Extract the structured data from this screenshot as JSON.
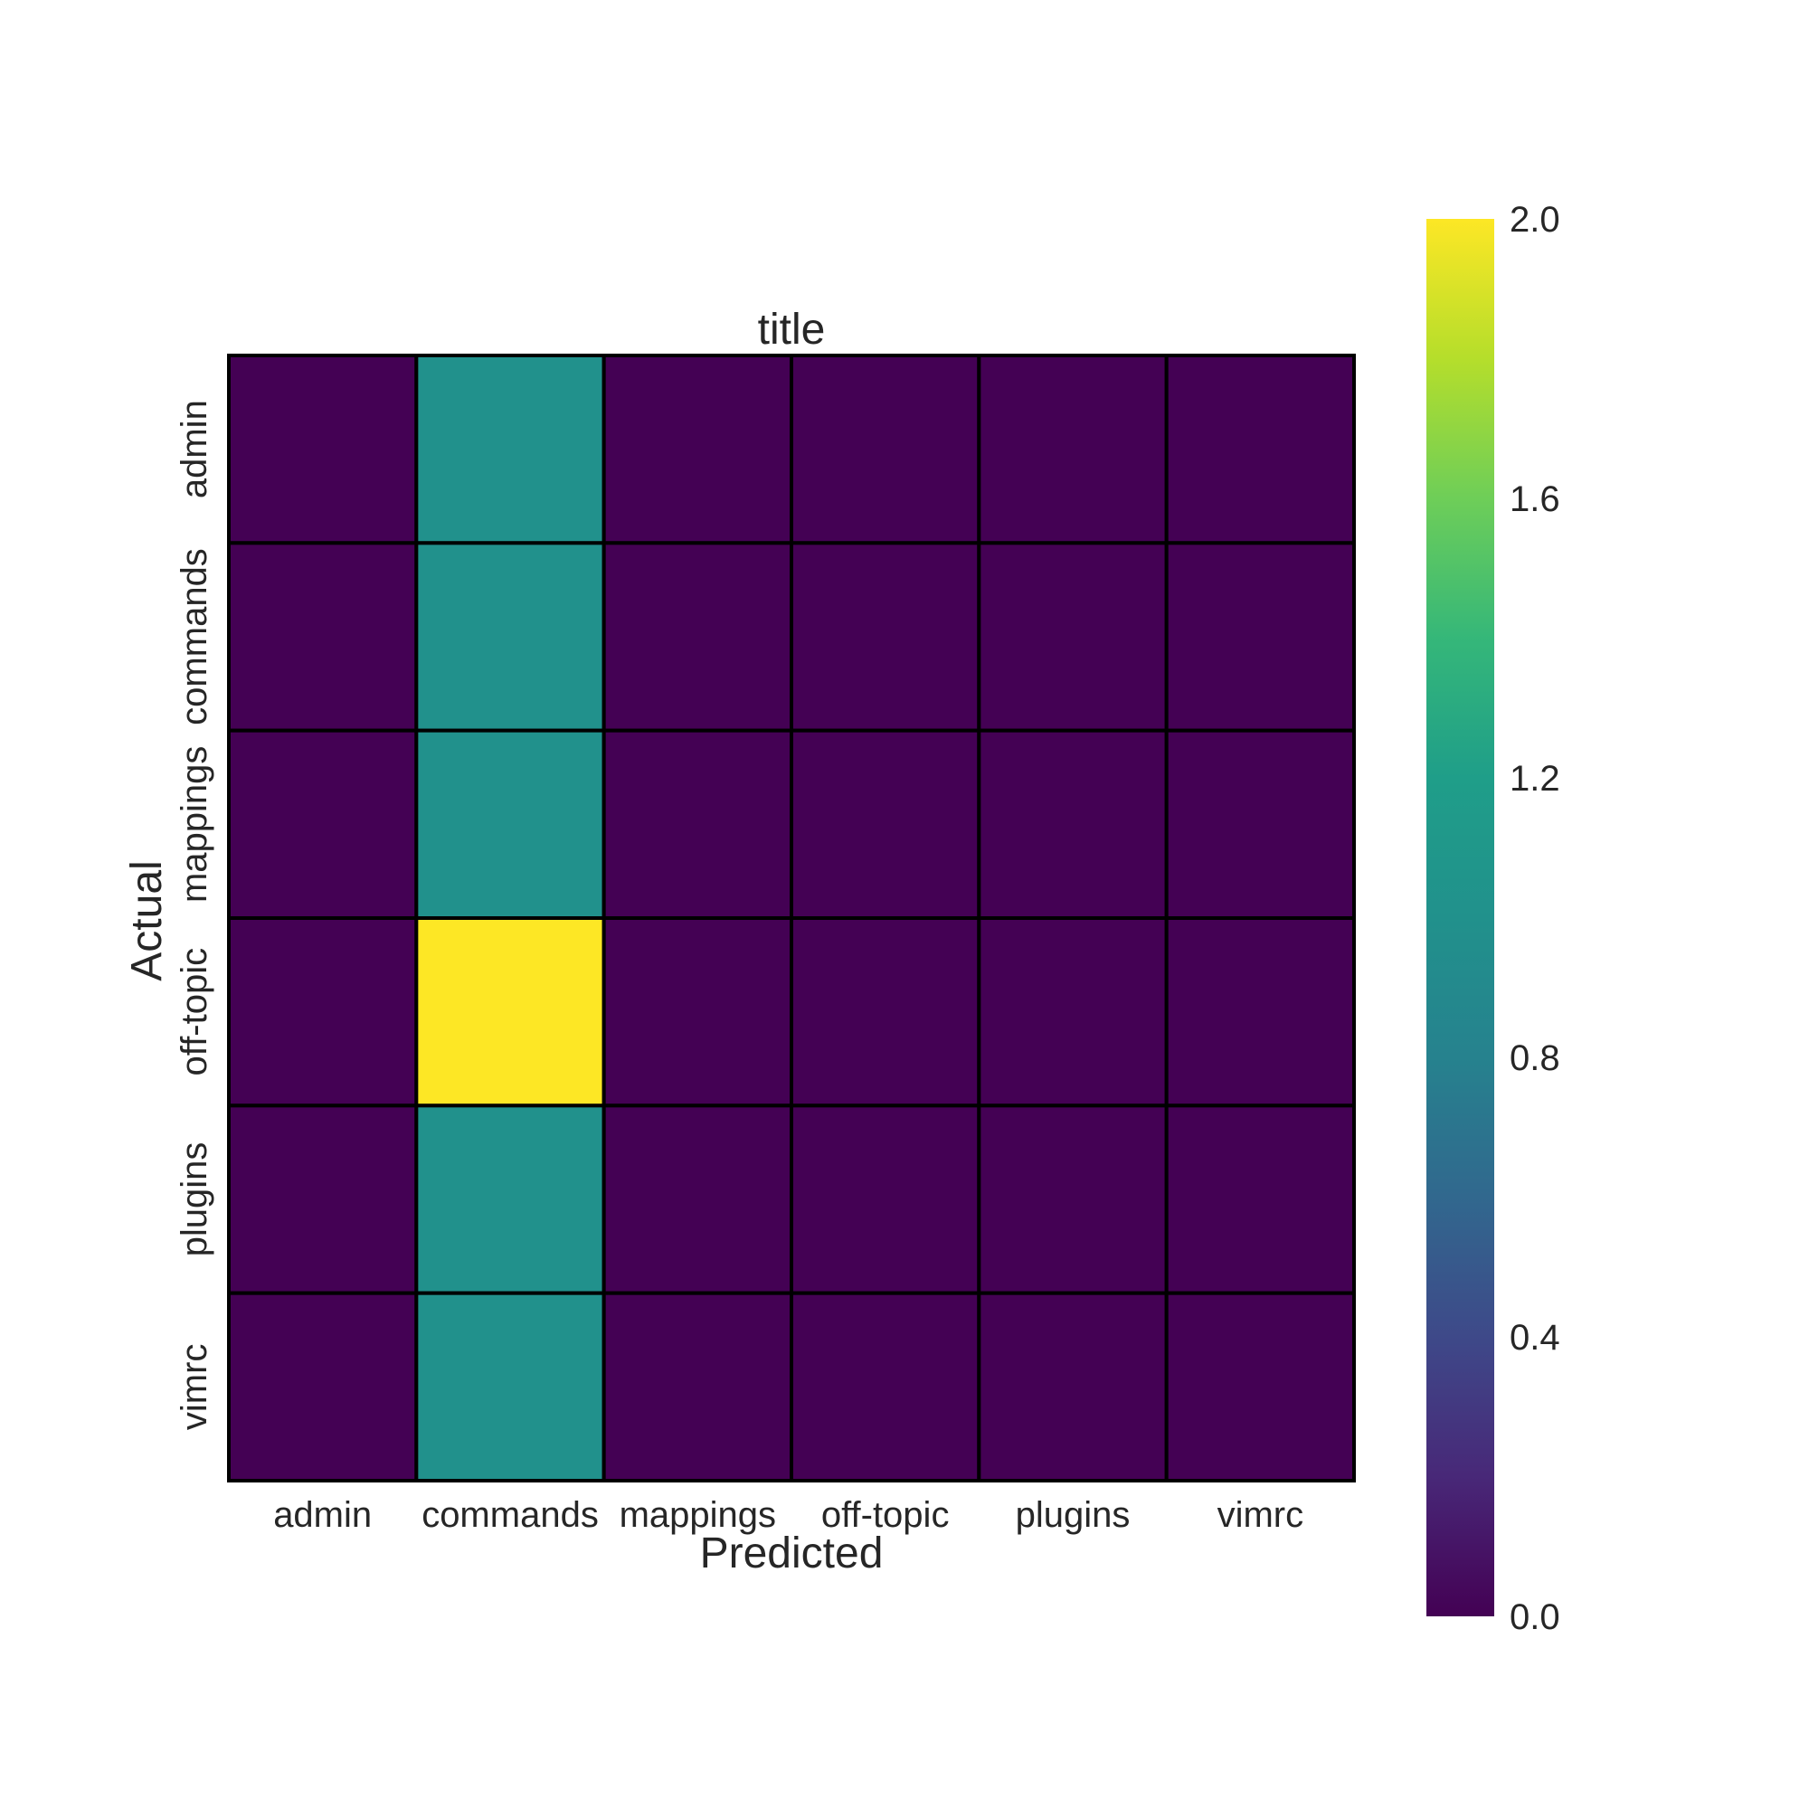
{
  "chart_data": {
    "type": "heatmap",
    "title": "title",
    "xlabel": "Predicted",
    "ylabel": "Actual",
    "x_categories": [
      "admin",
      "commands",
      "mappings",
      "off-topic",
      "plugins",
      "vimrc"
    ],
    "y_categories": [
      "admin",
      "commands",
      "mappings",
      "off-topic",
      "plugins",
      "vimrc"
    ],
    "values": [
      [
        0,
        1,
        0,
        0,
        0,
        0
      ],
      [
        0,
        1,
        0,
        0,
        0,
        0
      ],
      [
        0,
        1,
        0,
        0,
        0,
        0
      ],
      [
        0,
        2,
        0,
        0,
        0,
        0
      ],
      [
        0,
        1,
        0,
        0,
        0,
        0
      ],
      [
        0,
        1,
        0,
        0,
        0,
        0
      ]
    ],
    "colorscale": "viridis",
    "vmin": 0,
    "vmax": 2,
    "colorbar_ticks": [
      "0.0",
      "0.4",
      "0.8",
      "1.2",
      "1.6",
      "2.0"
    ],
    "colorbar_tick_values": [
      0,
      0.4,
      0.8,
      1.2,
      1.6,
      2.0
    ],
    "cell_border_color": "#000000"
  }
}
